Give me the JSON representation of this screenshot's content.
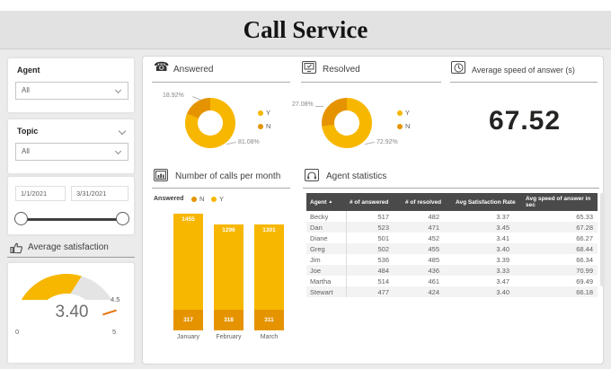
{
  "header": {
    "title": "Call Service"
  },
  "colors": {
    "answered_yes": "#F7B700",
    "answered_no": "#E59400",
    "gauge_fill": "#F7B700",
    "gauge_track": "#E4E4E4",
    "gauge_target": "#E8740C",
    "table_header_bg": "#4A4A4A"
  },
  "sidebar": {
    "agent_filter": {
      "label": "Agent",
      "value": "All"
    },
    "topic_filter": {
      "label": "Topic",
      "value": "All"
    },
    "date_filter": {
      "start": "1/1/2021",
      "end": "3/31/2021"
    },
    "satisfaction_title": "Average satisfaction",
    "gauge_labels": {
      "value": "3.40",
      "min": "0",
      "max": "5",
      "target": "4.5"
    }
  },
  "answered": {
    "title": "Answered",
    "labels": {
      "no_pct": "18.92%",
      "yes_pct": "81.08%"
    },
    "legend": {
      "yes": "Y",
      "no": "N"
    }
  },
  "resolved": {
    "title": "Resolved",
    "labels": {
      "no_pct": "27.08%",
      "yes_pct": "72.92%"
    },
    "legend": {
      "yes": "Y",
      "no": "N"
    }
  },
  "avg_speed": {
    "title": "Average speed of answer (s)",
    "value": "67.52"
  },
  "calls_per_month": {
    "title": "Number of calls per month",
    "legend_title": "Answered",
    "legend": {
      "no": "N",
      "yes": "Y"
    }
  },
  "agent_stats": {
    "title": "Agent statistics",
    "columns": [
      "Agent",
      "# of answered",
      "# of resolved",
      "Avg Satisfaction Rate",
      "Avg speed of answer in sec"
    ],
    "rows": [
      [
        "Becky",
        "517",
        "482",
        "3.37",
        "65.33"
      ],
      [
        "Dan",
        "523",
        "471",
        "3.45",
        "67.28"
      ],
      [
        "Diane",
        "501",
        "452",
        "3.41",
        "66.27"
      ],
      [
        "Greg",
        "502",
        "455",
        "3.40",
        "68.44"
      ],
      [
        "Jim",
        "536",
        "485",
        "3.39",
        "66.34"
      ],
      [
        "Joe",
        "484",
        "436",
        "3.33",
        "70.99"
      ],
      [
        "Martha",
        "514",
        "461",
        "3.47",
        "69.49"
      ],
      [
        "Stewart",
        "477",
        "424",
        "3.40",
        "66.18"
      ]
    ]
  },
  "chart_data": [
    {
      "type": "pie",
      "title": "Answered",
      "labels": [
        "Y",
        "N"
      ],
      "values": [
        81.08,
        18.92
      ],
      "unit": "percent",
      "donut": true,
      "legend_position": "right"
    },
    {
      "type": "pie",
      "title": "Resolved",
      "labels": [
        "Y",
        "N"
      ],
      "values": [
        72.92,
        27.08
      ],
      "unit": "percent",
      "donut": true,
      "legend_position": "right"
    },
    {
      "type": "card",
      "title": "Average speed of answer (s)",
      "value": 67.52
    },
    {
      "type": "bar",
      "stacked": true,
      "title": "Number of calls per month",
      "categories": [
        "January",
        "February",
        "March"
      ],
      "series": [
        {
          "name": "N",
          "values": [
            317,
            318,
            311
          ]
        },
        {
          "name": "Y",
          "values": [
            1455,
            1296,
            1301
          ]
        }
      ],
      "legend_position": "top",
      "value_labels": true
    },
    {
      "type": "gauge",
      "title": "Average satisfaction",
      "value": 3.4,
      "min": 0,
      "max": 5,
      "target": 4.5
    },
    {
      "type": "table",
      "title": "Agent statistics",
      "columns": [
        "Agent",
        "# of answered",
        "# of resolved",
        "Avg Satisfaction Rate",
        "Avg speed of answer in sec"
      ],
      "rows": [
        [
          "Becky",
          517,
          482,
          3.37,
          65.33
        ],
        [
          "Dan",
          523,
          471,
          3.45,
          67.28
        ],
        [
          "Diane",
          501,
          452,
          3.41,
          66.27
        ],
        [
          "Greg",
          502,
          455,
          3.4,
          68.44
        ],
        [
          "Jim",
          536,
          485,
          3.39,
          66.34
        ],
        [
          "Joe",
          484,
          436,
          3.33,
          70.99
        ],
        [
          "Martha",
          514,
          461,
          3.47,
          69.49
        ],
        [
          "Stewart",
          477,
          424,
          3.4,
          66.18
        ]
      ]
    }
  ]
}
